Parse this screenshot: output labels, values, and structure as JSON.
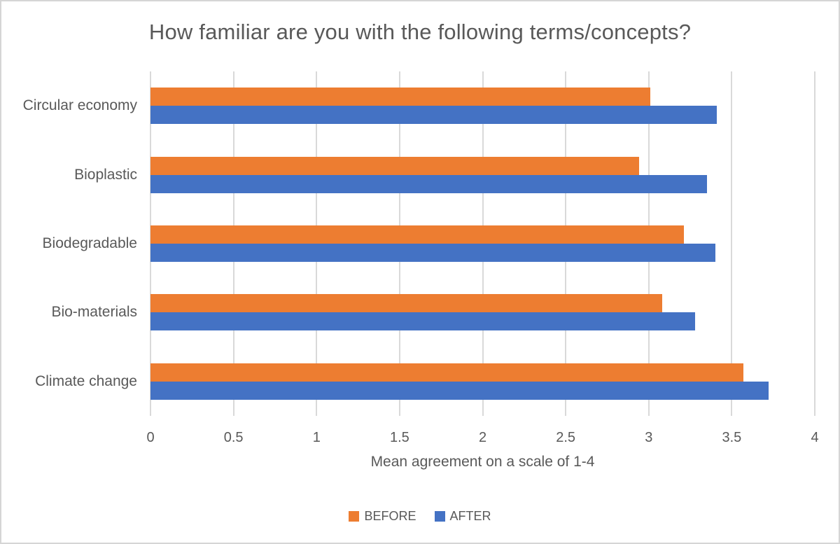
{
  "chart_data": {
    "type": "bar",
    "orientation": "horizontal",
    "title": "How familiar are you with the following terms/concepts?",
    "xlabel": "Mean agreement on a scale of 1-4",
    "categories": [
      "Circular economy",
      "Bioplastic",
      "Biodegradable",
      "Bio-materials",
      "Climate change"
    ],
    "series": [
      {
        "name": "BEFORE",
        "color": "#ED7D31",
        "values": [
          3.01,
          2.94,
          3.21,
          3.08,
          3.57
        ]
      },
      {
        "name": "AFTER",
        "color": "#4472C4",
        "values": [
          3.41,
          3.35,
          3.4,
          3.28,
          3.72
        ]
      }
    ],
    "xlim": [
      0,
      4
    ],
    "xticks": [
      0,
      0.5,
      1,
      1.5,
      2,
      2.5,
      3,
      3.5,
      4
    ],
    "grid": true,
    "legend_position": "bottom",
    "colors": {
      "before": "#ED7D31",
      "after": "#4472C4",
      "gridline": "#D9D9D9",
      "text": "#595959",
      "frame_border": "#D5D5D5"
    }
  }
}
